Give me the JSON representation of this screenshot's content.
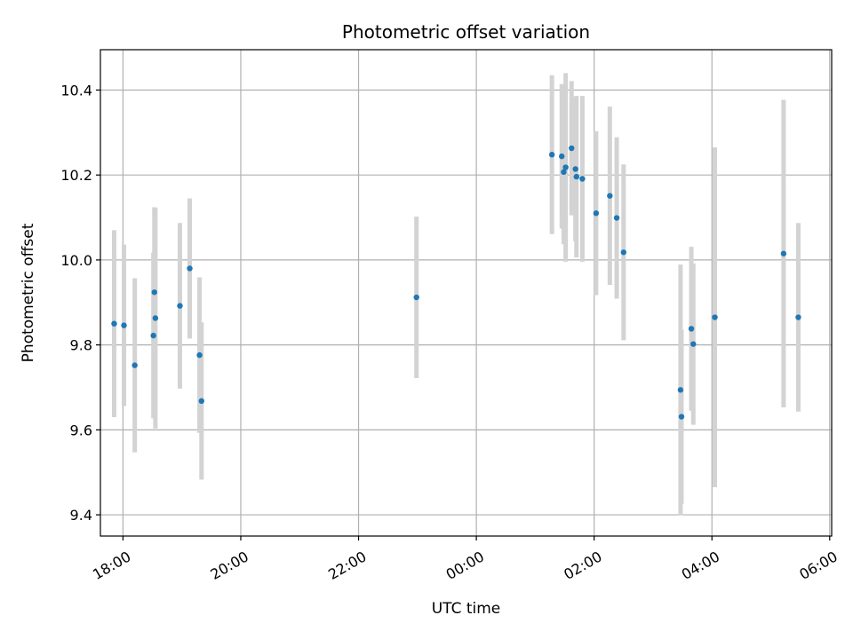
{
  "chart_data": {
    "type": "scatter",
    "title": "Photometric offset variation",
    "xlabel": "UTC time",
    "ylabel": "Photometric offset",
    "x_axis_kind": "time",
    "xlim": [
      "2024-01-01T17:37:00",
      "2024-01-02T06:02:00"
    ],
    "ylim": [
      9.35,
      10.495
    ],
    "x_ticks": [
      {
        "value": "2024-01-01T18:00:00",
        "label": "18:00"
      },
      {
        "value": "2024-01-01T20:00:00",
        "label": "20:00"
      },
      {
        "value": "2024-01-01T22:00:00",
        "label": "22:00"
      },
      {
        "value": "2024-01-02T00:00:00",
        "label": "00:00"
      },
      {
        "value": "2024-01-02T02:00:00",
        "label": "02:00"
      },
      {
        "value": "2024-01-02T04:00:00",
        "label": "04:00"
      },
      {
        "value": "2024-01-02T06:00:00",
        "label": "06:00"
      }
    ],
    "y_ticks": [
      {
        "value": 9.4,
        "label": "9.4"
      },
      {
        "value": 9.6,
        "label": "9.6"
      },
      {
        "value": 9.8,
        "label": "9.8"
      },
      {
        "value": 10.0,
        "label": "10.0"
      },
      {
        "value": 10.2,
        "label": "10.2"
      },
      {
        "value": 10.4,
        "label": "10.4"
      }
    ],
    "grid": true,
    "marker_color": "#1f77b4",
    "errorbar_color": "#d3d3d3",
    "points": [
      {
        "t": "2024-01-01T17:51:00",
        "y": 9.85,
        "err": 0.22
      },
      {
        "t": "2024-01-01T18:01:00",
        "y": 9.846,
        "err": 0.19
      },
      {
        "t": "2024-01-01T18:12:00",
        "y": 9.752,
        "err": 0.205
      },
      {
        "t": "2024-01-01T18:31:00",
        "y": 9.822,
        "err": 0.195
      },
      {
        "t": "2024-01-01T18:32:00",
        "y": 9.924,
        "err": 0.2
      },
      {
        "t": "2024-01-01T18:33:00",
        "y": 9.863,
        "err": 0.26
      },
      {
        "t": "2024-01-01T18:58:00",
        "y": 9.892,
        "err": 0.195
      },
      {
        "t": "2024-01-01T19:08:00",
        "y": 9.98,
        "err": 0.165
      },
      {
        "t": "2024-01-01T19:18:00",
        "y": 9.776,
        "err": 0.183
      },
      {
        "t": "2024-01-01T19:20:00",
        "y": 9.668,
        "err": 0.185
      },
      {
        "t": "2024-01-01T22:59:00",
        "y": 9.912,
        "err": 0.19
      },
      {
        "t": "2024-01-02T01:17:00",
        "y": 10.248,
        "err": 0.187
      },
      {
        "t": "2024-01-02T01:27:00",
        "y": 10.244,
        "err": 0.17
      },
      {
        "t": "2024-01-02T01:29:00",
        "y": 10.207,
        "err": 0.17
      },
      {
        "t": "2024-01-02T01:31:00",
        "y": 10.218,
        "err": 0.222
      },
      {
        "t": "2024-01-02T01:37:00",
        "y": 10.263,
        "err": 0.158
      },
      {
        "t": "2024-01-02T01:41:00",
        "y": 10.214,
        "err": 0.17
      },
      {
        "t": "2024-01-02T01:42:00",
        "y": 10.196,
        "err": 0.19
      },
      {
        "t": "2024-01-02T01:48:00",
        "y": 10.191,
        "err": 0.195
      },
      {
        "t": "2024-01-02T02:02:00",
        "y": 10.11,
        "err": 0.193
      },
      {
        "t": "2024-01-02T02:16:00",
        "y": 10.151,
        "err": 0.21
      },
      {
        "t": "2024-01-02T02:23:00",
        "y": 10.099,
        "err": 0.19
      },
      {
        "t": "2024-01-02T02:30:00",
        "y": 10.018,
        "err": 0.207
      },
      {
        "t": "2024-01-02T03:28:00",
        "y": 9.694,
        "err": 0.295
      },
      {
        "t": "2024-01-02T03:29:00",
        "y": 9.631,
        "err": 0.205
      },
      {
        "t": "2024-01-02T03:39:00",
        "y": 9.838,
        "err": 0.193
      },
      {
        "t": "2024-01-02T03:41:00",
        "y": 9.802,
        "err": 0.19
      },
      {
        "t": "2024-01-02T04:03:00",
        "y": 9.865,
        "err": 0.4
      },
      {
        "t": "2024-01-02T05:13:00",
        "y": 10.015,
        "err": 0.362
      },
      {
        "t": "2024-01-02T05:28:00",
        "y": 9.865,
        "err": 0.222
      }
    ]
  }
}
